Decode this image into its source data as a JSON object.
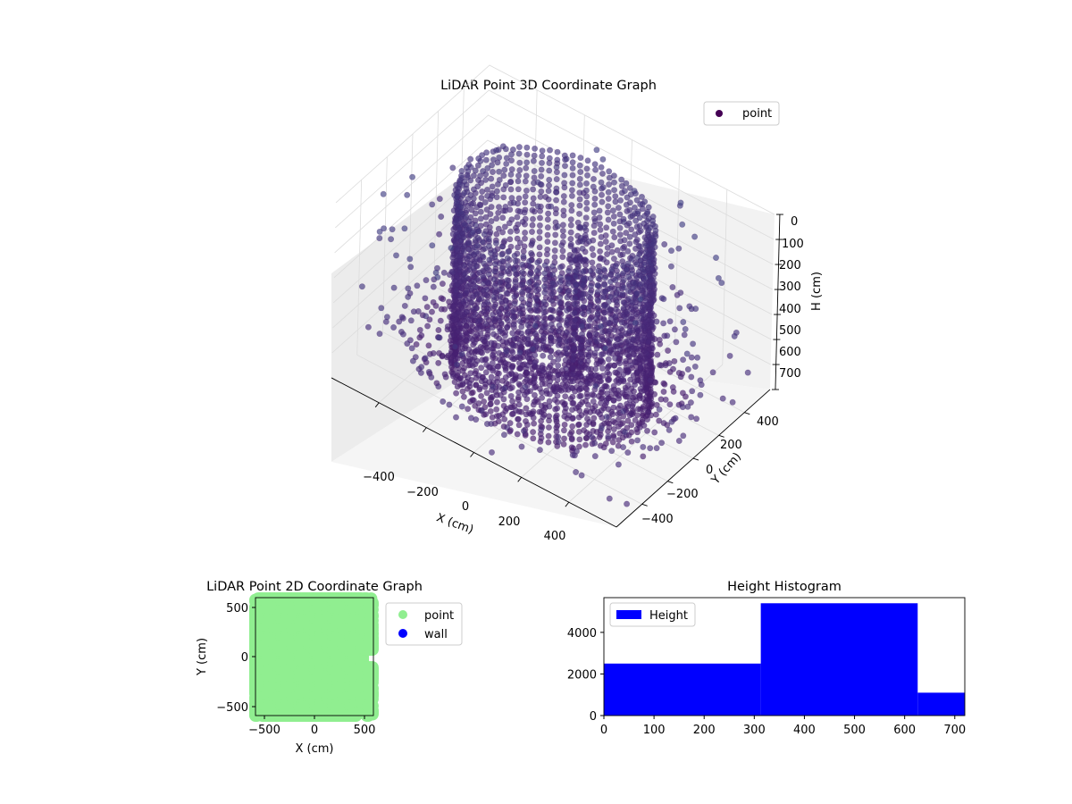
{
  "figure": {
    "panels": {
      "scatter3d": {
        "title": "LiDAR Point 3D Coordinate Graph"
      },
      "scatter2d": {
        "title": "LiDAR Point 2D Coordinate Graph"
      },
      "histogram": {
        "title": "Height Histogram"
      }
    }
  },
  "chart_data": [
    {
      "type": "scatter",
      "title": "LiDAR Point 3D Coordinate Graph",
      "xlabel": "X (cm)",
      "ylabel": "Y (cm)",
      "zlabel": "H (cm)",
      "x_ticks": [
        "−400",
        "−200",
        "0",
        "200",
        "400"
      ],
      "y_ticks": [
        "400",
        "200",
        "0",
        "−200",
        "−400"
      ],
      "z_ticks": [
        "0",
        "100",
        "200",
        "300",
        "400",
        "500",
        "600",
        "700"
      ],
      "xlim": [
        -600,
        600
      ],
      "ylim": [
        -600,
        600
      ],
      "zlim": [
        0,
        700
      ],
      "z_axis_inverted": true,
      "colormap": "viridis",
      "legend": {
        "position": "upper-right",
        "entries": [
          {
            "label": "point",
            "color": "#440154"
          }
        ]
      },
      "structure": {
        "cylindrical_wall": {
          "radius_cm": 380,
          "height_range_cm": [
            0,
            700
          ]
        },
        "scattered_room_points": {
          "extent_cm": 600
        },
        "inner_standing_object": {
          "center_cm": [
            50,
            100
          ],
          "height_range_cm": [
            0,
            700
          ]
        }
      }
    },
    {
      "type": "scatter",
      "title": "LiDAR Point 2D Coordinate Graph",
      "xlabel": "X (cm)",
      "ylabel": "Y (cm)",
      "x_ticks": [
        "−500",
        "0",
        "500"
      ],
      "y_ticks": [
        "500",
        "0",
        "−500"
      ],
      "xlim": [
        -600,
        600
      ],
      "ylim": [
        -600,
        600
      ],
      "legend": {
        "position": "right",
        "entries": [
          {
            "label": "point",
            "color": "#90ee90"
          },
          {
            "label": "wall",
            "color": "#0000ff"
          }
        ]
      }
    },
    {
      "type": "bar",
      "title": "Height Histogram",
      "bins": [
        {
          "range": [
            0,
            313
          ],
          "count": 2500
        },
        {
          "range": [
            313,
            626
          ],
          "count": 5400
        },
        {
          "range": [
            626,
            720
          ],
          "count": 1100
        }
      ],
      "x_ticks": [
        "0",
        "100",
        "200",
        "300",
        "400",
        "500",
        "600",
        "700"
      ],
      "y_ticks": [
        "0",
        "2000",
        "4000"
      ],
      "xlim": [
        0,
        720
      ],
      "ylim": [
        0,
        5670
      ],
      "color": "#0000ff",
      "legend": {
        "position": "upper-left",
        "entries": [
          {
            "label": "Height",
            "color": "#0000ff"
          }
        ]
      }
    }
  ]
}
